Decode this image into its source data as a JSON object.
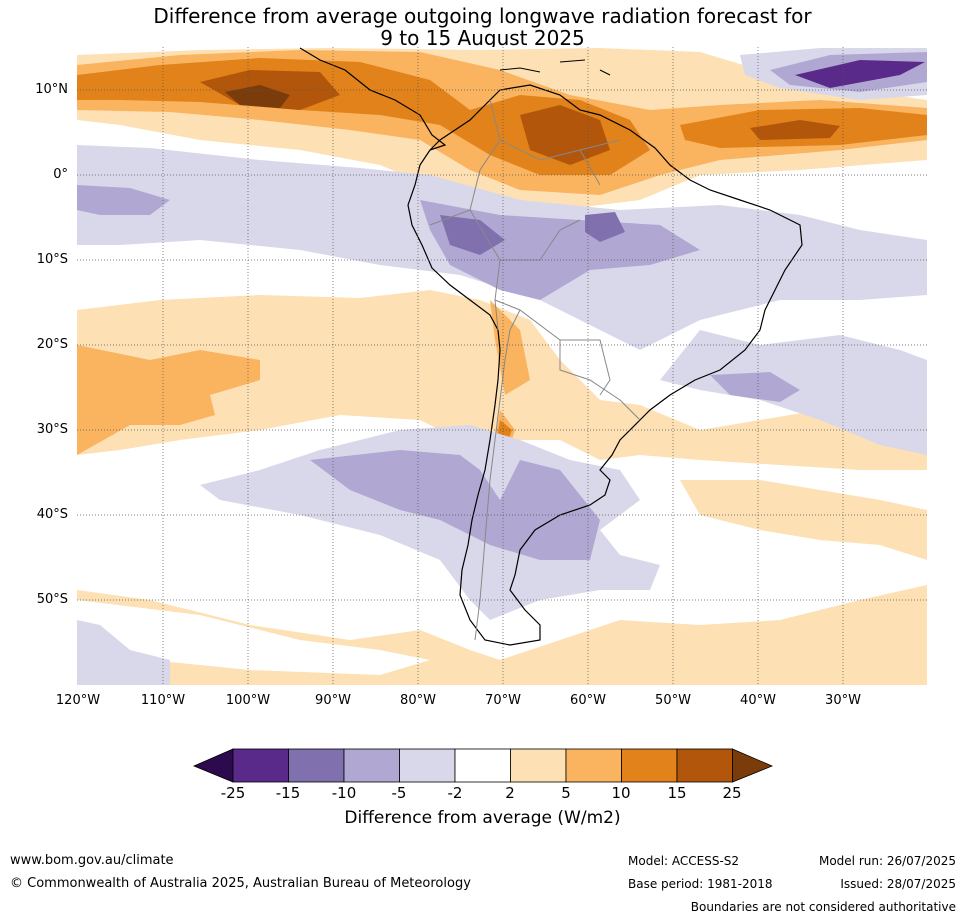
{
  "title_line1": "Difference from average outgoing longwave radiation forecast for",
  "title_line2": "9 to 15 August 2025",
  "lat_labels": [
    "10°N",
    "0°",
    "10°S",
    "20°S",
    "30°S",
    "40°S",
    "50°S"
  ],
  "lon_labels": [
    "120°W",
    "110°W",
    "100°W",
    "90°W",
    "80°W",
    "70°W",
    "60°W",
    "50°W",
    "40°W",
    "30°W"
  ],
  "colorbar": {
    "title": "Difference from average (W/m2)",
    "ticks": [
      "-25",
      "-15",
      "-10",
      "-5",
      "-2",
      "2",
      "5",
      "10",
      "15",
      "25"
    ],
    "colors": {
      "below_min": "#2d0a4e",
      "b1": "#5a2a8a",
      "b2": "#8070ae",
      "b3": "#b0a8d2",
      "b4": "#d8d8ea",
      "b5": "#ffffff",
      "b6": "#fde0b4",
      "b7": "#fab35f",
      "b8": "#e2821a",
      "b9": "#b2560c",
      "above_max": "#7a3c0a"
    }
  },
  "footer": {
    "website": "www.bom.gov.au/climate",
    "copyright": "© Commonwealth of Australia 2025, Australian Bureau of Meteorology",
    "model": "Model: ACCESS-S2",
    "base_period": "Base period: 1981-2018",
    "model_run": "Model run: 26/07/2025",
    "issued": "Issued: 28/07/2025",
    "disclaimer": "Boundaries are not considered authoritative"
  }
}
